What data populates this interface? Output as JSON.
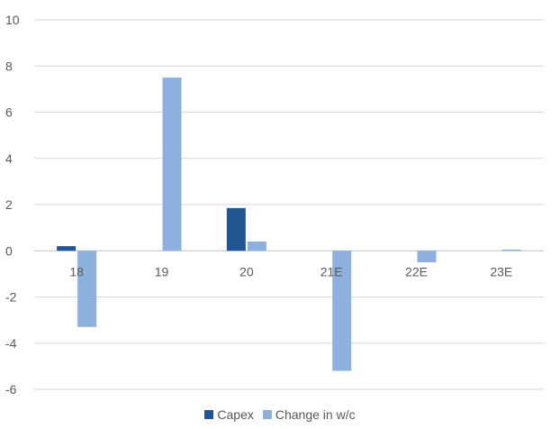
{
  "chart_data": {
    "type": "bar",
    "categories": [
      "18",
      "19",
      "20",
      "21E",
      "22E",
      "23E"
    ],
    "series": [
      {
        "name": "Capex",
        "values": [
          0.2,
          0.0,
          1.85,
          0.0,
          0.0,
          0.0
        ],
        "color": "#1f5591"
      },
      {
        "name": "Change in w/c",
        "values": [
          -3.3,
          7.5,
          0.4,
          -5.2,
          -0.5,
          0.05
        ],
        "color": "#8db0de"
      }
    ],
    "ylim": [
      -6,
      10
    ],
    "yticks": [
      -6,
      -4,
      -2,
      0,
      2,
      4,
      6,
      8,
      10
    ],
    "grid": true,
    "legend_position": "bottom",
    "title": "",
    "xlabel": "",
    "ylabel": ""
  }
}
